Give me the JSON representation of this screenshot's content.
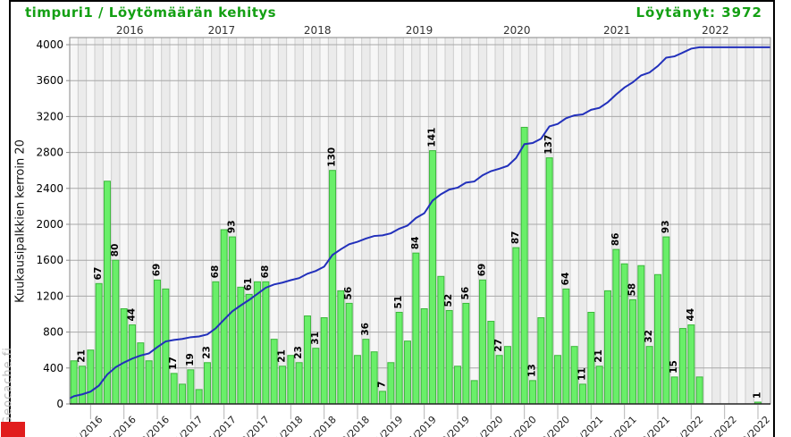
{
  "header": {
    "title": "timpuri1 / Löytömäärän kehitys",
    "found_label": "Löytänyt: 3972"
  },
  "y_axis": {
    "label": "Kuukausipalkkien kerroin 20",
    "ticks": [
      0,
      400,
      800,
      1200,
      1600,
      2000,
      2400,
      2800,
      3200,
      3600,
      4000
    ],
    "max": 4000
  },
  "watermark": "Geocache.fi",
  "colors": {
    "title_green": "#14a014",
    "bar_fill": "#69ef69",
    "bar_stroke": "#3cb83c",
    "cumulative_line": "#2230bb",
    "gridline": "#a8a8a8",
    "month_separator": "#cdcdcd",
    "stripe_light": "#f7f7f7",
    "stripe_dark": "#ebebeb",
    "frame": "#8a8a8a",
    "red_marker": "#e11d1d"
  },
  "chart_data": {
    "type": "bar+line",
    "title": "timpuri1 / Löytömäärän kehitys",
    "ylabel": "Kuukausipalkkien kerroin 20",
    "bar_scale_factor": 20,
    "total_found": 3972,
    "ylim": [
      0,
      4000
    ],
    "years": [
      {
        "label": "2016",
        "i": 6.7
      },
      {
        "label": "2017",
        "i": 17.7
      },
      {
        "label": "2018",
        "i": 29.2
      },
      {
        "label": "2019",
        "i": 41.4
      },
      {
        "label": "2020",
        "i": 53.1
      },
      {
        "label": "2021",
        "i": 65.1
      },
      {
        "label": "2022",
        "i": 76.9
      }
    ],
    "x_ticks": [
      "1/2016",
      "5/2016",
      "9/2016",
      "1/2017",
      "5/2017",
      "9/2017",
      "1/2018",
      "5/2018",
      "9/2018",
      "1/2019",
      "5/2019",
      "9/2019",
      "1/2020",
      "5/2020",
      "9/2020",
      "1/2021",
      "5/2021",
      "9/2021",
      "1/2022",
      "5/2022",
      "9/2022"
    ],
    "months": [
      {
        "m": "11/2015",
        "v": 24,
        "L": 0
      },
      {
        "m": "12/2015",
        "v": 21,
        "L": 1
      },
      {
        "m": "1/2016",
        "v": 30,
        "L": 0
      },
      {
        "m": "2/2016",
        "v": 67,
        "L": 1
      },
      {
        "m": "3/2016",
        "v": 124,
        "L": 0
      },
      {
        "m": "4/2016",
        "v": 80,
        "L": 1
      },
      {
        "m": "5/2016",
        "v": 53,
        "L": 0
      },
      {
        "m": "6/2016",
        "v": 44,
        "L": 1
      },
      {
        "m": "7/2016",
        "v": 34,
        "L": 0
      },
      {
        "m": "8/2016",
        "v": 24,
        "L": 0
      },
      {
        "m": "9/2016",
        "v": 69,
        "L": 1
      },
      {
        "m": "10/2016",
        "v": 64,
        "L": 0
      },
      {
        "m": "11/2016",
        "v": 17,
        "L": 1
      },
      {
        "m": "12/2016",
        "v": 11,
        "L": 0
      },
      {
        "m": "1/2017",
        "v": 19,
        "L": 1
      },
      {
        "m": "2/2017",
        "v": 8,
        "L": 0
      },
      {
        "m": "3/2017",
        "v": 23,
        "L": 1
      },
      {
        "m": "4/2017",
        "v": 68,
        "L": 1
      },
      {
        "m": "5/2017",
        "v": 97,
        "L": 0
      },
      {
        "m": "6/2017",
        "v": 93,
        "L": 1
      },
      {
        "m": "7/2017",
        "v": 65,
        "L": 0
      },
      {
        "m": "8/2017",
        "v": 61,
        "L": 1
      },
      {
        "m": "9/2017",
        "v": 68,
        "L": 0
      },
      {
        "m": "10/2017",
        "v": 68,
        "L": 1
      },
      {
        "m": "11/2017",
        "v": 36,
        "L": 0
      },
      {
        "m": "12/2017",
        "v": 21,
        "L": 1
      },
      {
        "m": "1/2018",
        "v": 27,
        "L": 0
      },
      {
        "m": "2/2018",
        "v": 23,
        "L": 1
      },
      {
        "m": "3/2018",
        "v": 49,
        "L": 0
      },
      {
        "m": "4/2018",
        "v": 31,
        "L": 1
      },
      {
        "m": "5/2018",
        "v": 48,
        "L": 0
      },
      {
        "m": "6/2018",
        "v": 130,
        "L": 1
      },
      {
        "m": "7/2018",
        "v": 63,
        "L": 0
      },
      {
        "m": "8/2018",
        "v": 56,
        "L": 1
      },
      {
        "m": "9/2018",
        "v": 27,
        "L": 0
      },
      {
        "m": "10/2018",
        "v": 36,
        "L": 1
      },
      {
        "m": "11/2018",
        "v": 29,
        "L": 0
      },
      {
        "m": "12/2018",
        "v": 7,
        "L": 1
      },
      {
        "m": "1/2019",
        "v": 23,
        "L": 0
      },
      {
        "m": "2/2019",
        "v": 51,
        "L": 1
      },
      {
        "m": "3/2019",
        "v": 35,
        "L": 0
      },
      {
        "m": "4/2019",
        "v": 84,
        "L": 1
      },
      {
        "m": "5/2019",
        "v": 53,
        "L": 0
      },
      {
        "m": "6/2019",
        "v": 141,
        "L": 1
      },
      {
        "m": "7/2019",
        "v": 71,
        "L": 0
      },
      {
        "m": "8/2019",
        "v": 52,
        "L": 1
      },
      {
        "m": "9/2019",
        "v": 21,
        "L": 0
      },
      {
        "m": "10/2019",
        "v": 56,
        "L": 1
      },
      {
        "m": "11/2019",
        "v": 13,
        "L": 0
      },
      {
        "m": "12/2019",
        "v": 69,
        "L": 1
      },
      {
        "m": "1/2020",
        "v": 46,
        "L": 0
      },
      {
        "m": "2/2020",
        "v": 27,
        "L": 1
      },
      {
        "m": "3/2020",
        "v": 32,
        "L": 0
      },
      {
        "m": "4/2020",
        "v": 87,
        "L": 1
      },
      {
        "m": "5/2020",
        "v": 154,
        "L": 0
      },
      {
        "m": "6/2020",
        "v": 13,
        "L": 1
      },
      {
        "m": "7/2020",
        "v": 48,
        "L": 0
      },
      {
        "m": "8/2020",
        "v": 137,
        "L": 1
      },
      {
        "m": "9/2020",
        "v": 27,
        "L": 0
      },
      {
        "m": "10/2020",
        "v": 64,
        "L": 1
      },
      {
        "m": "11/2020",
        "v": 32,
        "L": 0
      },
      {
        "m": "12/2020",
        "v": 11,
        "L": 1
      },
      {
        "m": "1/2021",
        "v": 51,
        "L": 0
      },
      {
        "m": "2/2021",
        "v": 21,
        "L": 1
      },
      {
        "m": "3/2021",
        "v": 63,
        "L": 0
      },
      {
        "m": "4/2021",
        "v": 86,
        "L": 1
      },
      {
        "m": "5/2021",
        "v": 78,
        "L": 0
      },
      {
        "m": "6/2021",
        "v": 58,
        "L": 1
      },
      {
        "m": "7/2021",
        "v": 77,
        "L": 0
      },
      {
        "m": "8/2021",
        "v": 32,
        "L": 1
      },
      {
        "m": "9/2021",
        "v": 72,
        "L": 0
      },
      {
        "m": "10/2021",
        "v": 93,
        "L": 1
      },
      {
        "m": "11/2021",
        "v": 15,
        "L": 1
      },
      {
        "m": "12/2021",
        "v": 42,
        "L": 0
      },
      {
        "m": "1/2022",
        "v": 44,
        "L": 1
      },
      {
        "m": "2/2022",
        "v": 15,
        "L": 0
      },
      {
        "m": "3/2022",
        "v": 0,
        "L": 0
      },
      {
        "m": "4/2022",
        "v": 0,
        "L": 0
      },
      {
        "m": "5/2022",
        "v": 0,
        "L": 0
      },
      {
        "m": "6/2022",
        "v": 0,
        "L": 0
      },
      {
        "m": "7/2022",
        "v": 0,
        "L": 0
      },
      {
        "m": "8/2022",
        "v": 0,
        "L": 0
      },
      {
        "m": "9/2022",
        "v": 1,
        "L": 1
      }
    ]
  }
}
